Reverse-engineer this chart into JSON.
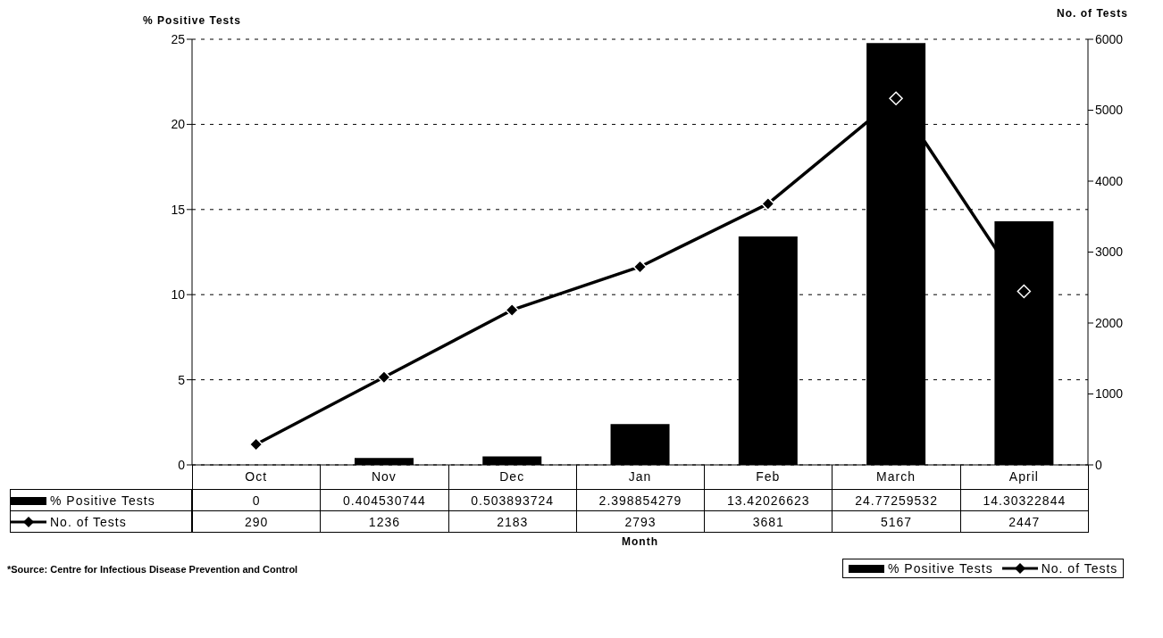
{
  "chart_data": {
    "type": "bar",
    "xlabel": "Month",
    "ylabel": "% Positive Tests",
    "y2label": "No. of Tests",
    "categories": [
      "Oct",
      "Nov",
      "Dec",
      "Jan",
      "Feb",
      "March",
      "April"
    ],
    "series": [
      {
        "name": "% Positive Tests",
        "color": "#000000",
        "values": [
          0,
          0.404530744,
          0.503893724,
          2.398854279,
          13.42026623,
          24.77259532,
          14.30322844
        ]
      },
      {
        "name": "No. of Tests",
        "type": "line",
        "axis": "y2",
        "color": "#000000",
        "marker": "diamond",
        "values": [
          290,
          1236,
          2183,
          2793,
          3681,
          5167,
          2447
        ]
      }
    ],
    "ylim": [
      0,
      25
    ],
    "yticks": [
      0,
      5,
      10,
      15,
      20,
      25
    ],
    "y2lim": [
      0,
      6000
    ],
    "y2ticks": [
      0,
      1000,
      2000,
      3000,
      4000,
      5000,
      6000
    ],
    "grid": "y",
    "data_labels": true,
    "legend": "bottom right",
    "annotations": [
      "*Source: Centre for Infectious Disease Prevention and Control"
    ]
  }
}
